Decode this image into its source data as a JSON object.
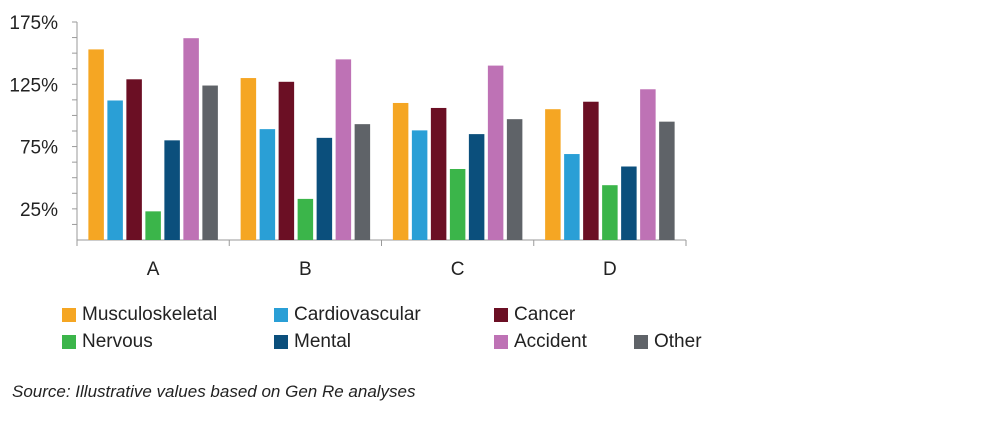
{
  "chart_data": {
    "type": "bar",
    "categories": [
      "A",
      "B",
      "C",
      "D"
    ],
    "series": [
      {
        "name": "Musculoskeletal",
        "color": "#F5A623",
        "values": [
          153,
          130,
          110,
          105
        ]
      },
      {
        "name": "Cardiovascular",
        "color": "#2A9FD6",
        "values": [
          112,
          89,
          88,
          69
        ]
      },
      {
        "name": "Cancer",
        "color": "#6B0F24",
        "values": [
          129,
          127,
          106,
          111
        ]
      },
      {
        "name": "Nervous",
        "color": "#3BB54A",
        "values": [
          23,
          33,
          57,
          44
        ]
      },
      {
        "name": "Mental",
        "color": "#0B4F7C",
        "values": [
          80,
          82,
          85,
          59
        ]
      },
      {
        "name": "Accident",
        "color": "#BE72B5",
        "values": [
          162,
          145,
          140,
          121
        ]
      },
      {
        "name": "Other",
        "color": "#5F6368",
        "values": [
          124,
          93,
          97,
          95
        ]
      }
    ],
    "yticks": [
      25,
      75,
      125,
      175
    ],
    "ytick_labels": [
      "25%",
      "75%",
      "125%",
      "175%"
    ],
    "ylim": [
      0,
      175
    ],
    "grid": false,
    "legend_position": "bottom",
    "xlabel": "",
    "ylabel": ""
  },
  "source_note": "Source: Illustrative values based on Gen Re analyses"
}
